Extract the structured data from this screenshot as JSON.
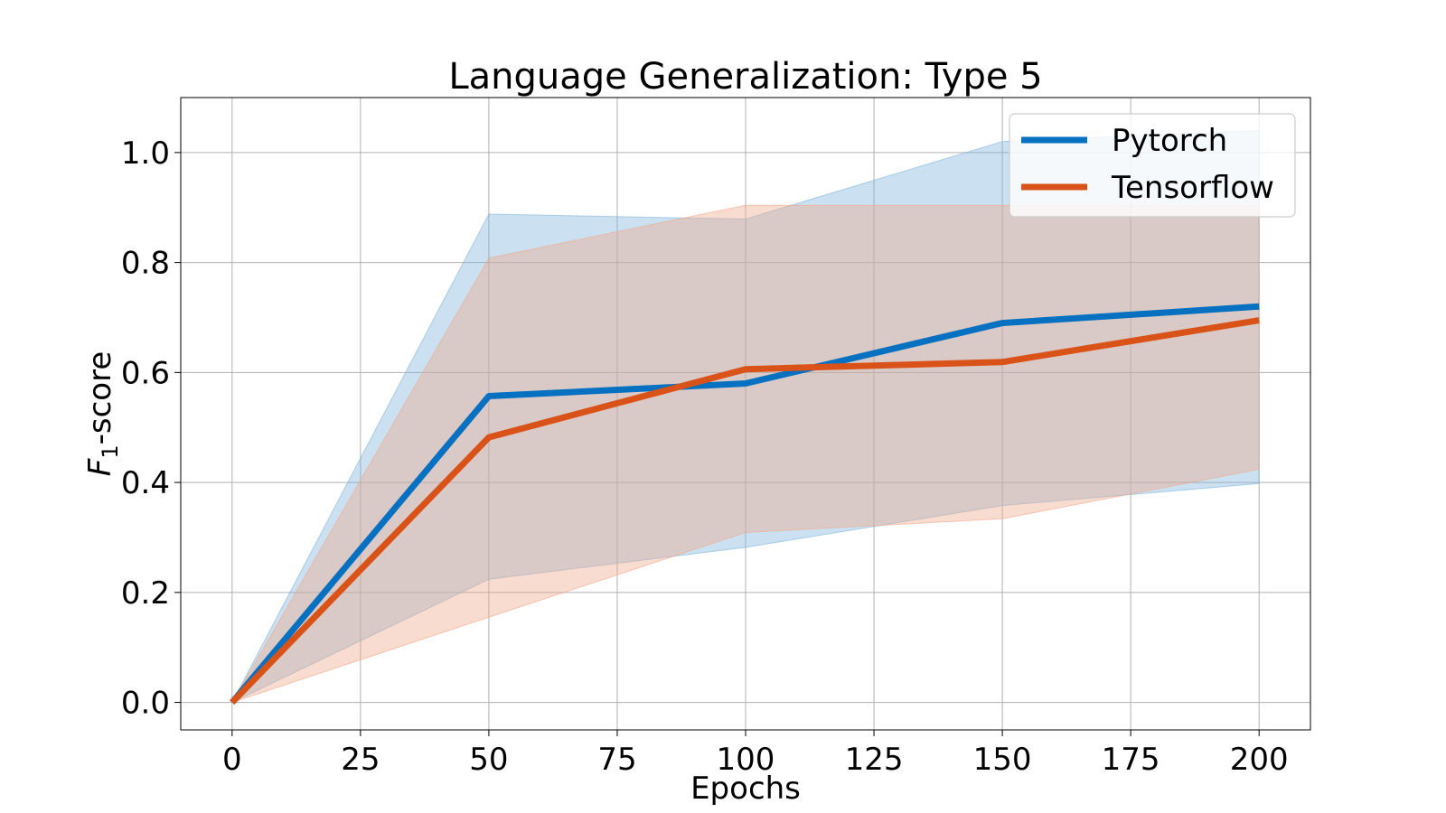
{
  "chart_data": {
    "type": "line",
    "title": "Language Generalization: Type 5",
    "xlabel": "Epochs",
    "ylabel_main": "F",
    "ylabel_sub": "1",
    "ylabel_suffix": "-score",
    "xlim": [
      -10,
      210
    ],
    "ylim": [
      -0.05,
      1.1
    ],
    "xticks": [
      0,
      25,
      50,
      75,
      100,
      125,
      150,
      175,
      200
    ],
    "xtick_labels": [
      "0",
      "25",
      "50",
      "75",
      "100",
      "125",
      "150",
      "175",
      "200"
    ],
    "yticks": [
      0.0,
      0.2,
      0.4,
      0.6,
      0.8,
      1.0
    ],
    "ytick_labels": [
      "0.0",
      "0.2",
      "0.4",
      "0.6",
      "0.8",
      "1.0"
    ],
    "grid": true,
    "legend_position": "top-right",
    "x": [
      0,
      50,
      100,
      150,
      200
    ],
    "series": [
      {
        "name": "Pytorch",
        "color": "#0571c0",
        "band_color": "#7db4dc",
        "values": [
          0.0,
          0.557,
          0.58,
          0.69,
          0.72
        ],
        "band_upper": [
          0.0,
          0.888,
          0.879,
          1.02,
          1.04
        ],
        "band_lower": [
          0.0,
          0.224,
          0.282,
          0.358,
          0.398
        ]
      },
      {
        "name": "Tensorflow",
        "color": "#d95319",
        "band_color": "#f0a88a",
        "values": [
          0.0,
          0.482,
          0.606,
          0.619,
          0.695
        ],
        "band_upper": [
          0.0,
          0.808,
          0.904,
          0.904,
          0.904
        ],
        "band_lower": [
          0.0,
          0.155,
          0.309,
          0.334,
          0.424
        ]
      }
    ]
  }
}
